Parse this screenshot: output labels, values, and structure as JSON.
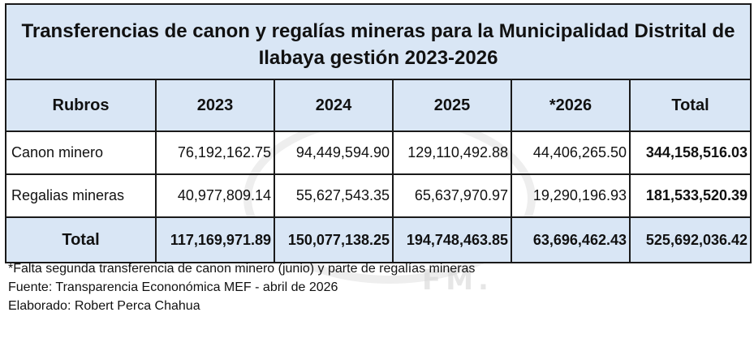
{
  "title": "Transferencias de canon y regalías mineras para la Municipalidad Distrital de Ilabaya gestión 2023-2026",
  "headers": [
    "Rubros",
    "2023",
    "2024",
    "2025",
    "*2026",
    "Total"
  ],
  "rows": [
    {
      "label": "Canon minero",
      "values": [
        "76,192,162.75",
        "94,449,594.90",
        "129,110,492.88",
        "44,406,265.50"
      ],
      "total": "344,158,516.03"
    },
    {
      "label": "Regalias mineras",
      "values": [
        "40,977,809.14",
        "55,627,543.35",
        "65,637,970.97",
        "19,290,196.93"
      ],
      "total": "181,533,520.39"
    }
  ],
  "totals": {
    "label": "Total",
    "values": [
      "117,169,971.89",
      "150,077,138.25",
      "194,748,463.85",
      "63,696,462.43"
    ],
    "total": "525,692,036.42"
  },
  "notes": [
    "*Falta segunda transferencia de canon minero (junio) y parte de regalías mineras",
    "Fuente: Transparencia Econonómica MEF - abril de 2026",
    "Elaborado: Robert Perca Chahua"
  ],
  "colors": {
    "header_bg": "#d9e6f5",
    "border": "#1a1a1a"
  }
}
